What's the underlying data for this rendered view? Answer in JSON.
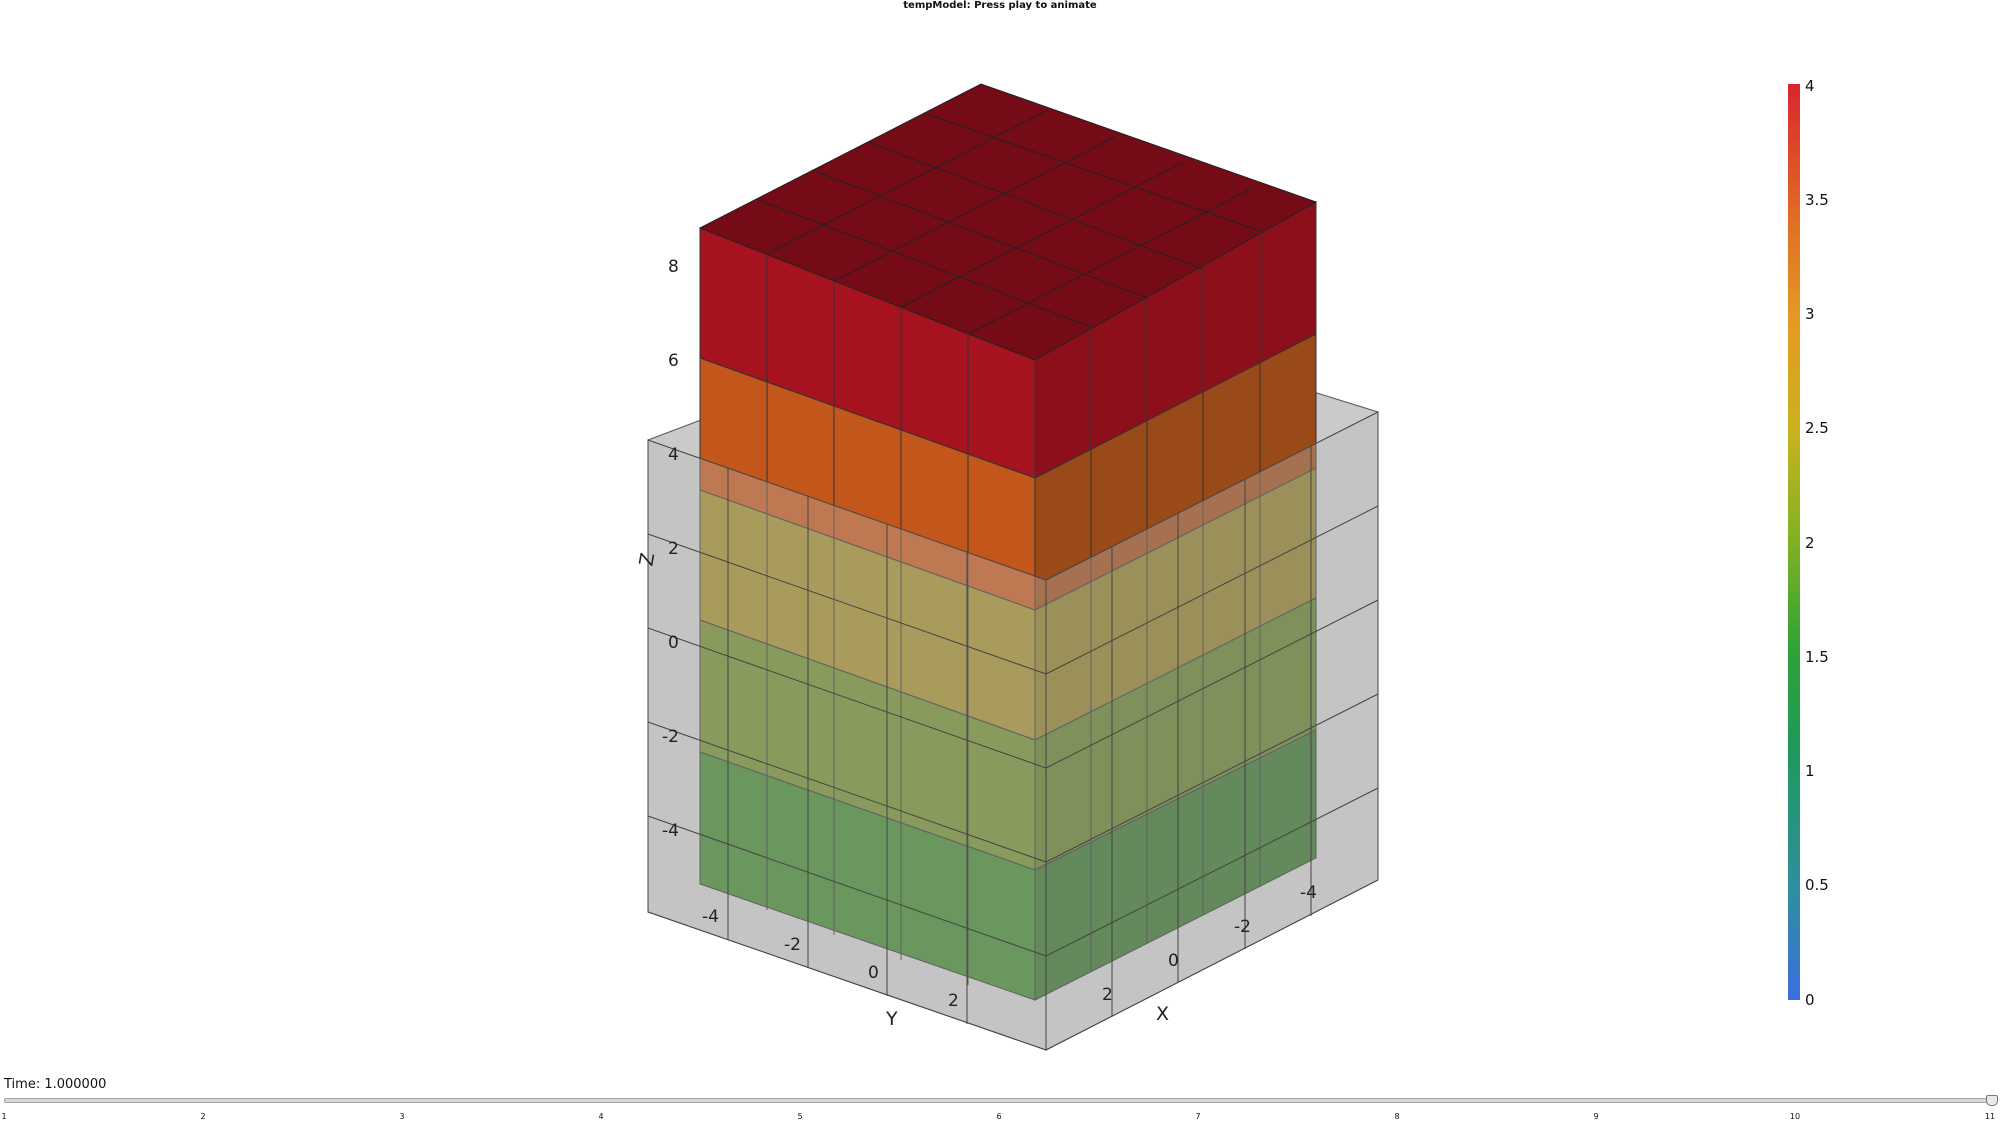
{
  "title": "tempModel: Press play to animate",
  "axes": {
    "x_title": "X",
    "y_title": "Y",
    "z_title": "Z",
    "x_ticks": [
      "-4",
      "-2",
      "0",
      "2"
    ],
    "y_ticks": [
      "-4",
      "-2",
      "0",
      "2"
    ],
    "z_ticks": [
      "-4",
      "-2",
      "0",
      "2",
      "4",
      "6",
      "8"
    ]
  },
  "colorbar": {
    "min": 0,
    "max": 4,
    "ticks": [
      "0",
      "0.5",
      "1",
      "1.5",
      "2",
      "2.5",
      "3",
      "3.5",
      "4"
    ]
  },
  "time": {
    "label": "Time: 1.000000",
    "value": 1.0,
    "slider_ticks": [
      "1",
      "2",
      "3",
      "4",
      "5",
      "6",
      "7",
      "8",
      "9",
      "10",
      "11"
    ],
    "slider_position": 11
  },
  "colors": {
    "top": "#7a0c18",
    "band_red": "#a7111f",
    "band_orange": "#c4561a",
    "band_yellow": "#a99124",
    "band_green_olive": "#6b8a2c",
    "band_green": "#3a8a2e",
    "grey_box": "#bfbfbf"
  }
}
